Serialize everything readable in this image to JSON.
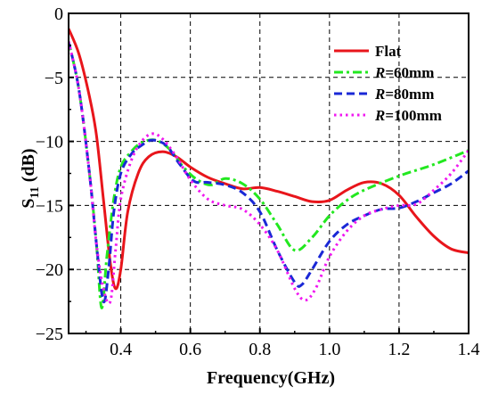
{
  "chart_data": {
    "type": "line",
    "title": "",
    "xlabel": "Frequency(GHz)",
    "ylabel_main": "S",
    "ylabel_sub": "11",
    "ylabel_unit": " (dB)",
    "xlim": [
      0.25,
      1.4
    ],
    "ylim": [
      -25,
      0
    ],
    "xticks": [
      0.4,
      0.6,
      0.8,
      1.0,
      1.2,
      1.4
    ],
    "xtick_labels": [
      "0.4",
      "0.6",
      "0.8",
      "1.0",
      "1.2",
      "1.4"
    ],
    "yticks": [
      0,
      -5,
      -10,
      -15,
      -20,
      -25
    ],
    "ytick_labels": [
      "0",
      "−5",
      "−10",
      "−15",
      "−20",
      "−25"
    ],
    "grid": true,
    "legend_position": "top-right",
    "series": [
      {
        "name": "Flat",
        "legend_prefix": "",
        "legend_suffix": "Flat",
        "color": "#e8151b",
        "dash": "solid",
        "x": [
          0.25,
          0.28,
          0.31,
          0.33,
          0.35,
          0.37,
          0.385,
          0.4,
          0.42,
          0.45,
          0.48,
          0.52,
          0.56,
          0.6,
          0.65,
          0.7,
          0.75,
          0.8,
          0.85,
          0.9,
          0.95,
          1.0,
          1.05,
          1.1,
          1.15,
          1.2,
          1.25,
          1.3,
          1.35,
          1.4
        ],
        "y": [
          -1.2,
          -3.2,
          -6.5,
          -9.5,
          -14.5,
          -19.5,
          -21.5,
          -20.0,
          -15.5,
          -12.5,
          -11.2,
          -10.8,
          -11.2,
          -12.0,
          -12.8,
          -13.3,
          -13.7,
          -13.6,
          -13.9,
          -14.3,
          -14.7,
          -14.6,
          -13.8,
          -13.2,
          -13.3,
          -14.2,
          -15.9,
          -17.4,
          -18.4,
          -18.7
        ]
      },
      {
        "name": "R=60mm",
        "legend_prefix": "R",
        "legend_suffix": "=60mm",
        "color": "#22e81f",
        "dash": "dashdot",
        "x": [
          0.25,
          0.28,
          0.31,
          0.33,
          0.345,
          0.36,
          0.38,
          0.4,
          0.43,
          0.46,
          0.5,
          0.54,
          0.58,
          0.62,
          0.66,
          0.7,
          0.75,
          0.8,
          0.85,
          0.9,
          0.95,
          1.0,
          1.05,
          1.1,
          1.2,
          1.3,
          1.4
        ],
        "y": [
          -2.2,
          -6.0,
          -12.5,
          -18.0,
          -23.0,
          -19.0,
          -14.5,
          -12.0,
          -10.8,
          -10.1,
          -9.9,
          -10.6,
          -12.0,
          -13.0,
          -13.4,
          -12.9,
          -13.3,
          -14.5,
          -16.5,
          -18.5,
          -17.5,
          -15.8,
          -14.6,
          -13.8,
          -12.7,
          -11.8,
          -10.7
        ]
      },
      {
        "name": "R=80mm",
        "legend_prefix": "R",
        "legend_suffix": "=80mm",
        "color": "#1a28d6",
        "dash": "dash",
        "x": [
          0.25,
          0.28,
          0.31,
          0.33,
          0.35,
          0.365,
          0.38,
          0.4,
          0.43,
          0.46,
          0.49,
          0.53,
          0.57,
          0.61,
          0.65,
          0.7,
          0.75,
          0.8,
          0.85,
          0.9,
          0.92,
          0.95,
          1.0,
          1.05,
          1.1,
          1.15,
          1.2,
          1.25,
          1.3,
          1.35,
          1.4
        ],
        "y": [
          -2.2,
          -6.0,
          -12.5,
          -18.0,
          -22.5,
          -20.0,
          -15.5,
          -12.5,
          -11.0,
          -10.3,
          -9.9,
          -10.3,
          -11.8,
          -13.1,
          -13.2,
          -13.4,
          -14.0,
          -15.5,
          -18.5,
          -21.0,
          -21.2,
          -20.0,
          -17.8,
          -16.5,
          -15.8,
          -15.3,
          -15.2,
          -14.7,
          -14.0,
          -13.3,
          -12.3
        ]
      },
      {
        "name": "R=100mm",
        "legend_prefix": "R",
        "legend_suffix": "=100mm",
        "color": "#f018f0",
        "dash": "dot",
        "x": [
          0.25,
          0.28,
          0.31,
          0.33,
          0.35,
          0.37,
          0.385,
          0.4,
          0.43,
          0.46,
          0.49,
          0.52,
          0.56,
          0.6,
          0.65,
          0.7,
          0.75,
          0.8,
          0.85,
          0.9,
          0.93,
          0.96,
          1.0,
          1.05,
          1.1,
          1.15,
          1.2,
          1.25,
          1.3,
          1.35,
          1.4
        ],
        "y": [
          -2.2,
          -6.0,
          -12.5,
          -18.0,
          -21.5,
          -22.5,
          -18.5,
          -14.5,
          -11.5,
          -10.0,
          -9.4,
          -9.8,
          -11.2,
          -13.0,
          -14.5,
          -15.0,
          -15.3,
          -16.5,
          -18.5,
          -21.5,
          -22.4,
          -21.5,
          -19.0,
          -17.0,
          -15.8,
          -15.3,
          -15.0,
          -14.9,
          -13.8,
          -12.5,
          -10.7
        ]
      }
    ]
  }
}
